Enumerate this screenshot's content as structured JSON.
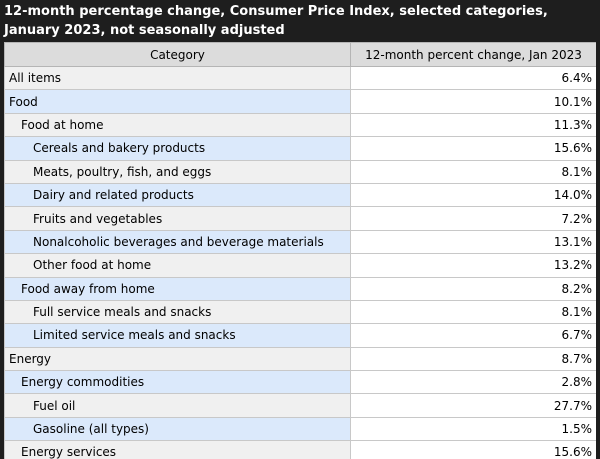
{
  "title": "12-month percentage change, Consumer Price Index, selected categories, January 2023, not seasonally adjusted",
  "table": {
    "headers": [
      "Category",
      "12-month percent change, Jan 2023"
    ],
    "rows": [
      {
        "category": "All items",
        "value": "6.4%",
        "level": 0
      },
      {
        "category": "Food",
        "value": "10.1%",
        "level": 0
      },
      {
        "category": "Food at home",
        "value": "11.3%",
        "level": 1
      },
      {
        "category": "Cereals and bakery products",
        "value": "15.6%",
        "level": 2
      },
      {
        "category": "Meats, poultry, fish, and eggs",
        "value": "8.1%",
        "level": 2
      },
      {
        "category": "Dairy and related products",
        "value": "14.0%",
        "level": 2
      },
      {
        "category": "Fruits and vegetables",
        "value": "7.2%",
        "level": 2
      },
      {
        "category": "Nonalcoholic beverages and beverage materials",
        "value": "13.1%",
        "level": 2
      },
      {
        "category": "Other food at home",
        "value": "13.2%",
        "level": 2
      },
      {
        "category": "Food away from home",
        "value": "8.2%",
        "level": 1
      },
      {
        "category": "Full service meals and snacks",
        "value": "8.1%",
        "level": 2
      },
      {
        "category": "Limited service meals and snacks",
        "value": "6.7%",
        "level": 2
      },
      {
        "category": "Energy",
        "value": "8.7%",
        "level": 0
      },
      {
        "category": "Energy commodities",
        "value": "2.8%",
        "level": 1
      },
      {
        "category": "Fuel oil",
        "value": "27.7%",
        "level": 2
      },
      {
        "category": "Gasoline (all types)",
        "value": "1.5%",
        "level": 2
      },
      {
        "category": "Energy services",
        "value": "15.6%",
        "level": 1
      }
    ]
  }
}
